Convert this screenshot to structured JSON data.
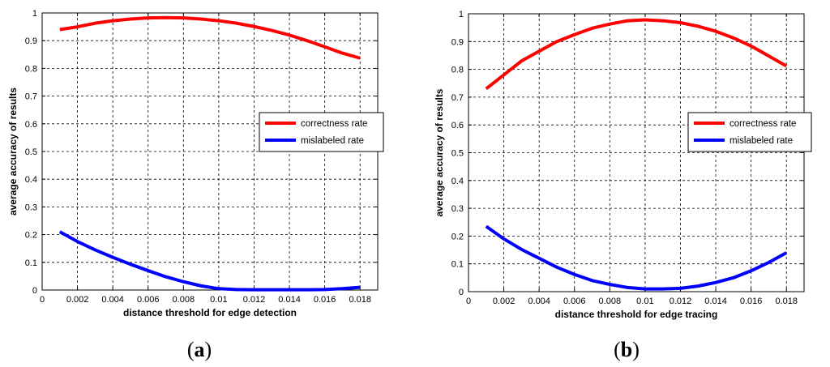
{
  "chart_data": [
    {
      "type": "line",
      "panel_label": "a",
      "xlabel": "distance threshold for edge detection",
      "ylabel": "average accuracy of results",
      "xlim": [
        0,
        0.019
      ],
      "ylim": [
        0,
        1
      ],
      "grid": true,
      "legend_position": "middle-right",
      "x_ticks": [
        "0",
        "0.002",
        "0.004",
        "0.006",
        "0.008",
        "0.01",
        "0.012",
        "0.014",
        "0.016",
        "0.018"
      ],
      "y_ticks": [
        "0",
        "0.1",
        "0.2",
        "0.3",
        "0.4",
        "0.5",
        "0.6",
        "0.7",
        "0.8",
        "0.9",
        "1"
      ],
      "series": [
        {
          "name": "correctness rate",
          "color": "#ff0000",
          "x": [
            0.001,
            0.002,
            0.003,
            0.004,
            0.005,
            0.006,
            0.007,
            0.008,
            0.009,
            0.01,
            0.011,
            0.012,
            0.013,
            0.014,
            0.015,
            0.016,
            0.017,
            0.018
          ],
          "y": [
            0.94,
            0.95,
            0.963,
            0.972,
            0.978,
            0.982,
            0.983,
            0.982,
            0.978,
            0.972,
            0.963,
            0.951,
            0.937,
            0.92,
            0.9,
            0.878,
            0.855,
            0.837
          ]
        },
        {
          "name": "mislabeled rate",
          "color": "#0000ff",
          "x": [
            0.001,
            0.002,
            0.003,
            0.004,
            0.005,
            0.006,
            0.007,
            0.008,
            0.009,
            0.01,
            0.011,
            0.012,
            0.013,
            0.014,
            0.015,
            0.016,
            0.017,
            0.018
          ],
          "y": [
            0.21,
            0.175,
            0.145,
            0.118,
            0.093,
            0.07,
            0.048,
            0.03,
            0.015,
            0.005,
            0.002,
            0.001,
            0.001,
            0.001,
            0.001,
            0.002,
            0.005,
            0.01
          ]
        }
      ]
    },
    {
      "type": "line",
      "panel_label": "b",
      "xlabel": "distance threshold for edge tracing",
      "ylabel": "average accuracy of results",
      "xlim": [
        0,
        0.019
      ],
      "ylim": [
        0,
        1
      ],
      "grid": true,
      "legend_position": "middle-right",
      "x_ticks": [
        "0",
        "0.002",
        "0.004",
        "0.006",
        "0.008",
        "0.01",
        "0.012",
        "0.014",
        "0.016",
        "0.018"
      ],
      "y_ticks": [
        "0",
        "0.1",
        "0.2",
        "0.3",
        "0.4",
        "0.5",
        "0.6",
        "0.7",
        "0.8",
        "0.9",
        "1"
      ],
      "series": [
        {
          "name": "correctness rate",
          "color": "#ff0000",
          "x": [
            0.001,
            0.002,
            0.003,
            0.004,
            0.005,
            0.006,
            0.007,
            0.008,
            0.009,
            0.01,
            0.011,
            0.012,
            0.013,
            0.014,
            0.015,
            0.016,
            0.017,
            0.018
          ],
          "y": [
            0.73,
            0.78,
            0.83,
            0.865,
            0.9,
            0.925,
            0.948,
            0.963,
            0.975,
            0.978,
            0.975,
            0.968,
            0.955,
            0.937,
            0.913,
            0.884,
            0.848,
            0.812
          ]
        },
        {
          "name": "mislabeled rate",
          "color": "#0000ff",
          "x": [
            0.001,
            0.002,
            0.003,
            0.004,
            0.005,
            0.006,
            0.007,
            0.008,
            0.009,
            0.01,
            0.011,
            0.012,
            0.013,
            0.014,
            0.015,
            0.016,
            0.017,
            0.018
          ],
          "y": [
            0.235,
            0.19,
            0.152,
            0.12,
            0.088,
            0.062,
            0.04,
            0.026,
            0.015,
            0.01,
            0.01,
            0.012,
            0.02,
            0.033,
            0.05,
            0.075,
            0.105,
            0.14
          ]
        }
      ]
    }
  ]
}
